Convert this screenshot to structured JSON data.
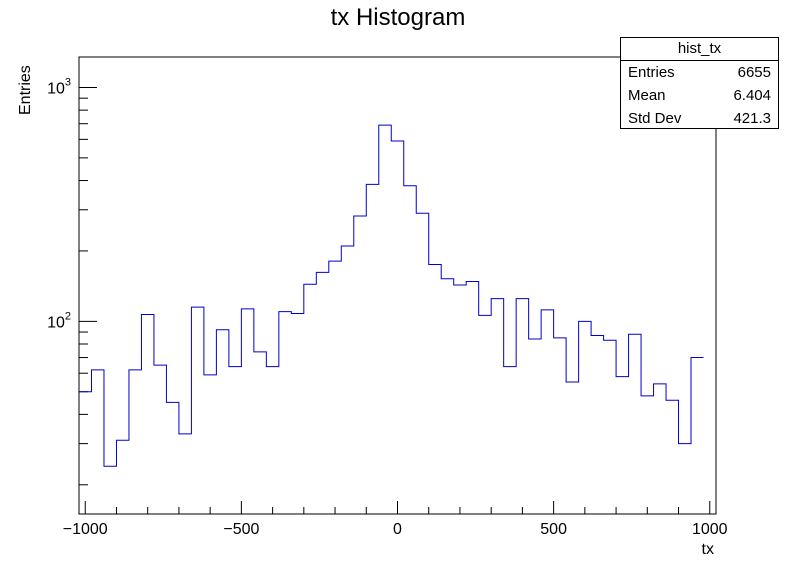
{
  "chart_data": {
    "type": "bar",
    "title": "tx Histogram",
    "xlabel": "tx",
    "ylabel": "Entries",
    "xlim": [
      -1020,
      1020
    ],
    "ylim": [
      15,
      1350
    ],
    "yscale": "log",
    "bin_edges_start": -1020,
    "bin_width": 40,
    "values": [
      50,
      62,
      24,
      31,
      62,
      107,
      65,
      45,
      33,
      115,
      59,
      92,
      64,
      113,
      74,
      64,
      110,
      108,
      144,
      162,
      181,
      210,
      282,
      385,
      690,
      590,
      380,
      290,
      175,
      152,
      143,
      148,
      106,
      125,
      64,
      125,
      84,
      112,
      85,
      55,
      100,
      87,
      83,
      58,
      88,
      48,
      54,
      46,
      30,
      70
    ],
    "xticks": [
      "−1000",
      "−500",
      "0",
      "500",
      "1000"
    ],
    "xtick_values": [
      -1000,
      -500,
      0,
      500,
      1000
    ],
    "yticks_major": [
      {
        "value": 100,
        "base": "10",
        "exp": "2"
      },
      {
        "value": 1000,
        "base": "10",
        "exp": "3"
      }
    ],
    "grid": false,
    "line_color": "#0000cc",
    "axis_color": "#000000"
  },
  "stats_box": {
    "title": "hist_tx",
    "rows": [
      {
        "label": "Entries",
        "value": "6655"
      },
      {
        "label": "Mean",
        "value": "6.404"
      },
      {
        "label": "Std Dev",
        "value": "421.3"
      }
    ]
  }
}
